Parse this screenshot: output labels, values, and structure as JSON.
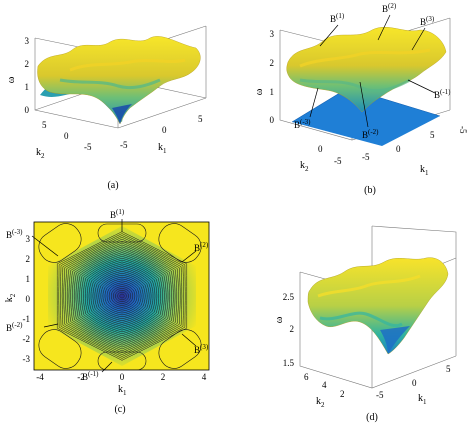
{
  "panels": [
    {
      "id": "a",
      "caption": "(a)",
      "z_label": "ω",
      "z_ticks": [
        "0",
        "1",
        "2",
        "3"
      ],
      "k2_label": "k",
      "k2_sub": "2",
      "k1_label": "k",
      "k1_sub": "1",
      "k2_ticks": [
        "5",
        "0",
        "-5"
      ],
      "k1_ticks": [
        "-5",
        "0",
        "5"
      ]
    },
    {
      "id": "b",
      "caption": "(b)",
      "z_label": "ω",
      "z_ticks": [
        "0",
        "1",
        "2",
        "3"
      ],
      "k2_label": "k",
      "k2_sub": "2",
      "k1_label": "k",
      "k1_sub": "1",
      "k2_ticks": [
        "0",
        "-5"
      ],
      "k1_ticks": [
        "-5",
        "0",
        "5"
      ],
      "extra_tick": "-5",
      "annotations": [
        {
          "base": "B",
          "sup": "(1)"
        },
        {
          "base": "B",
          "sup": "(2)"
        },
        {
          "base": "B",
          "sup": "(3)"
        },
        {
          "base": "B",
          "sup": "(-1)"
        },
        {
          "base": "B",
          "sup": "(-2)"
        },
        {
          "base": "B",
          "sup": "(-3)"
        }
      ]
    },
    {
      "id": "c",
      "caption": "(c)",
      "x_label": "k",
      "x_sub": "1",
      "y_label": "k",
      "y_sub": "2",
      "x_ticks": [
        "-4",
        "-2",
        "0",
        "2",
        "4"
      ],
      "y_ticks": [
        "3",
        "2",
        "1",
        "0",
        "-1",
        "-2",
        "-3"
      ],
      "annotations": [
        {
          "base": "B",
          "sup": "(1)"
        },
        {
          "base": "B",
          "sup": "(2)"
        },
        {
          "base": "B",
          "sup": "(3)"
        },
        {
          "base": "B",
          "sup": "(-1)"
        },
        {
          "base": "B",
          "sup": "(-2)"
        },
        {
          "base": "B",
          "sup": "(-3)"
        }
      ]
    },
    {
      "id": "d",
      "caption": "(d)",
      "z_label": "ω",
      "z_ticks": [
        "1.5",
        "2",
        "2.5"
      ],
      "k2_label": "k",
      "k2_sub": "2",
      "k1_label": "k",
      "k1_sub": "1",
      "k2_ticks": [
        "6",
        "4",
        "2"
      ],
      "k1_ticks": [
        "-5",
        "0",
        "5"
      ]
    }
  ],
  "colors": {
    "yellow": "#f5e11c",
    "teal": "#2fb39a",
    "blue": "#1e6fd0",
    "navy": "#25308a",
    "plane_blue": "#1f7fd6",
    "contour": "#1a1a1a"
  }
}
